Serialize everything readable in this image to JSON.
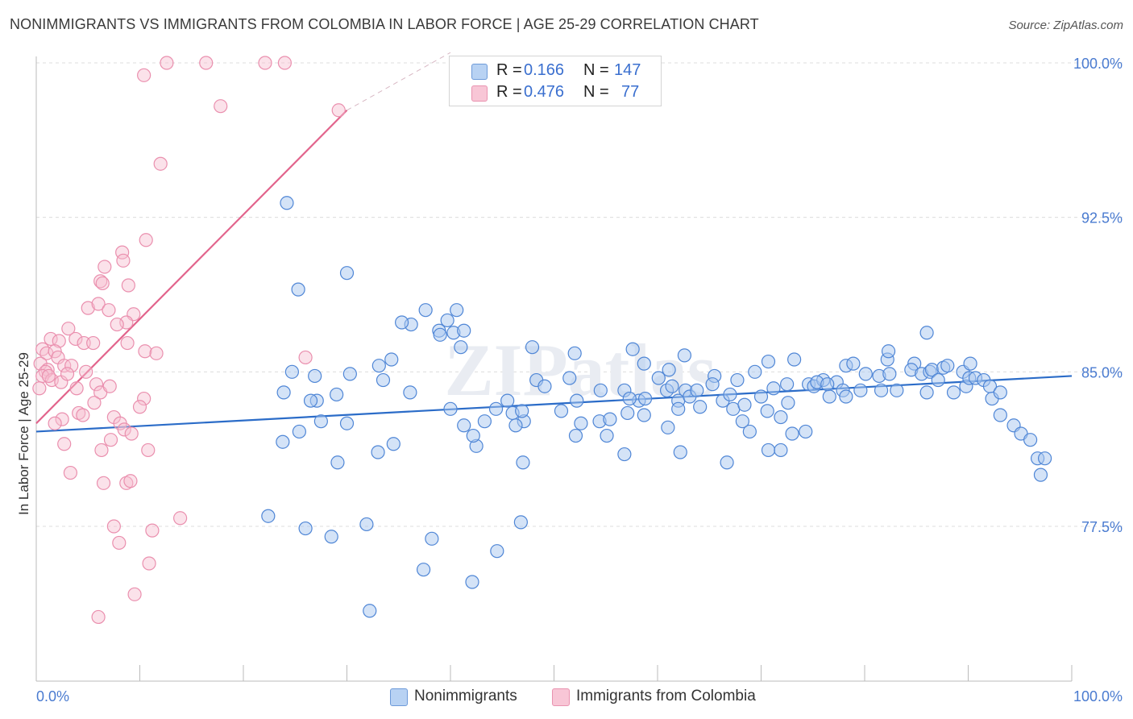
{
  "title": "NONIMMIGRANTS VS IMMIGRANTS FROM COLOMBIA IN LABOR FORCE | AGE 25-29 CORRELATION CHART",
  "source": "Source: ZipAtlas.com",
  "watermark": "ZIPatlas",
  "legend": {
    "rows": [
      {
        "r_label": "R =",
        "r_value": "0.166",
        "n_label": "N =",
        "n_value": "147"
      },
      {
        "r_label": "R =",
        "r_value": "0.476",
        "n_label": "N =",
        "n_value": "77"
      }
    ]
  },
  "colors": {
    "blue_fill": "#a9c8f0",
    "blue_stroke": "#4f86d6",
    "blue_line": "#2b6cc8",
    "pink_fill": "#f6bfd0",
    "pink_stroke": "#ea8fae",
    "pink_line": "#e2648c",
    "tick_text": "#4a7bd0",
    "grid": "#dcdcdc"
  },
  "chart_data": {
    "type": "scatter",
    "title": "NONIMMIGRANTS VS IMMIGRANTS FROM COLOMBIA IN LABOR FORCE | AGE 25-29 CORRELATION CHART",
    "xlabel": "",
    "ylabel": "In Labor Force | Age 25-29",
    "xlim": [
      0,
      100
    ],
    "ylim": [
      70.0,
      100.5
    ],
    "x_tick_labels": [
      "0.0%",
      "100.0%"
    ],
    "y_ticks": [
      77.5,
      85.0,
      92.5,
      100.0
    ],
    "y_tick_labels": [
      "77.5%",
      "85.0%",
      "92.5%",
      "100.0%"
    ],
    "grid": true,
    "legend_position": "top-center",
    "series": [
      {
        "name": "Nonimmigrants",
        "color": "blue",
        "R": 0.166,
        "N": 147,
        "trend": {
          "x0": 0,
          "y0": 82.1,
          "x1": 100,
          "y1": 84.8
        },
        "points": [
          [
            24.2,
            93.2
          ],
          [
            25.3,
            89.0
          ],
          [
            30.0,
            89.8
          ],
          [
            36.2,
            87.3
          ],
          [
            35.3,
            87.4
          ],
          [
            34.3,
            85.6
          ],
          [
            37.6,
            88.0
          ],
          [
            38.9,
            87.0
          ],
          [
            39.0,
            86.8
          ],
          [
            39.7,
            87.5
          ],
          [
            40.6,
            88.0
          ],
          [
            40.3,
            86.9
          ],
          [
            41.0,
            86.2
          ],
          [
            41.3,
            87.0
          ],
          [
            47.9,
            86.2
          ],
          [
            52.0,
            85.9
          ],
          [
            57.6,
            86.1
          ],
          [
            58.7,
            85.4
          ],
          [
            61.1,
            85.1
          ],
          [
            33.1,
            85.3
          ],
          [
            30.3,
            84.9
          ],
          [
            26.9,
            84.8
          ],
          [
            33.5,
            84.6
          ],
          [
            36.1,
            84.0
          ],
          [
            27.1,
            83.6
          ],
          [
            26.5,
            83.6
          ],
          [
            23.9,
            84.0
          ],
          [
            24.7,
            85.0
          ],
          [
            29.0,
            83.9
          ],
          [
            30.0,
            82.5
          ],
          [
            34.5,
            81.5
          ],
          [
            25.4,
            82.1
          ],
          [
            27.5,
            82.6
          ],
          [
            23.8,
            81.6
          ],
          [
            29.1,
            80.6
          ],
          [
            33.0,
            81.1
          ],
          [
            41.3,
            82.4
          ],
          [
            40.0,
            83.2
          ],
          [
            43.3,
            82.6
          ],
          [
            42.5,
            81.4
          ],
          [
            44.4,
            83.2
          ],
          [
            42.2,
            81.9
          ],
          [
            45.5,
            83.6
          ],
          [
            46.0,
            83.0
          ],
          [
            47.1,
            82.6
          ],
          [
            46.9,
            83.1
          ],
          [
            48.3,
            84.6
          ],
          [
            46.3,
            82.4
          ],
          [
            49.1,
            84.3
          ],
          [
            51.5,
            84.7
          ],
          [
            52.2,
            83.6
          ],
          [
            52.6,
            82.5
          ],
          [
            52.1,
            81.9
          ],
          [
            54.5,
            84.1
          ],
          [
            54.4,
            82.6
          ],
          [
            55.4,
            82.7
          ],
          [
            55.1,
            81.9
          ],
          [
            56.8,
            84.1
          ],
          [
            57.1,
            83.0
          ],
          [
            58.2,
            83.6
          ],
          [
            58.7,
            82.9
          ],
          [
            60.1,
            84.7
          ],
          [
            60.9,
            84.1
          ],
          [
            61.4,
            84.3
          ],
          [
            62.0,
            83.6
          ],
          [
            62.7,
            84.1
          ],
          [
            63.1,
            83.8
          ],
          [
            63.8,
            84.1
          ],
          [
            64.1,
            83.3
          ],
          [
            65.5,
            84.8
          ],
          [
            65.3,
            84.4
          ],
          [
            66.3,
            83.6
          ],
          [
            67.0,
            83.9
          ],
          [
            67.3,
            83.2
          ],
          [
            67.7,
            84.6
          ],
          [
            68.2,
            82.6
          ],
          [
            68.4,
            83.4
          ],
          [
            68.9,
            82.1
          ],
          [
            69.4,
            85.0
          ],
          [
            70.0,
            83.8
          ],
          [
            70.6,
            83.1
          ],
          [
            71.2,
            84.2
          ],
          [
            72.5,
            84.4
          ],
          [
            72.6,
            83.5
          ],
          [
            74.6,
            84.4
          ],
          [
            75.1,
            84.3
          ],
          [
            76.0,
            84.6
          ],
          [
            76.6,
            83.8
          ],
          [
            77.3,
            84.5
          ],
          [
            77.9,
            84.1
          ],
          [
            78.2,
            85.3
          ],
          [
            78.2,
            83.8
          ],
          [
            78.9,
            85.4
          ],
          [
            79.6,
            84.1
          ],
          [
            80.1,
            84.9
          ],
          [
            81.4,
            84.8
          ],
          [
            81.6,
            84.1
          ],
          [
            82.2,
            85.6
          ],
          [
            82.4,
            84.9
          ],
          [
            83.1,
            84.1
          ],
          [
            84.8,
            85.4
          ],
          [
            84.5,
            85.1
          ],
          [
            85.5,
            84.9
          ],
          [
            86.0,
            84.0
          ],
          [
            86.3,
            85.0
          ],
          [
            86.5,
            85.1
          ],
          [
            87.1,
            84.6
          ],
          [
            87.6,
            85.2
          ],
          [
            88.0,
            85.3
          ],
          [
            88.6,
            84.0
          ],
          [
            89.5,
            85.0
          ],
          [
            89.8,
            84.3
          ],
          [
            90.1,
            84.7
          ],
          [
            90.7,
            84.7
          ],
          [
            91.5,
            84.6
          ],
          [
            92.1,
            84.3
          ],
          [
            92.3,
            83.7
          ],
          [
            93.1,
            84.0
          ],
          [
            93.1,
            82.9
          ],
          [
            94.4,
            82.4
          ],
          [
            95.1,
            82.0
          ],
          [
            96.0,
            81.7
          ],
          [
            96.7,
            80.8
          ],
          [
            97.0,
            80.0
          ],
          [
            97.4,
            80.8
          ],
          [
            82.3,
            86.0
          ],
          [
            86.0,
            86.9
          ],
          [
            62.6,
            85.8
          ],
          [
            70.7,
            85.5
          ],
          [
            73.2,
            85.6
          ],
          [
            75.4,
            84.5
          ],
          [
            76.4,
            84.4
          ],
          [
            90.2,
            85.4
          ],
          [
            22.4,
            78.0
          ],
          [
            26.0,
            77.4
          ],
          [
            28.5,
            77.0
          ],
          [
            31.9,
            77.6
          ],
          [
            37.4,
            75.4
          ],
          [
            38.2,
            76.9
          ],
          [
            44.5,
            76.3
          ],
          [
            46.8,
            77.7
          ],
          [
            47.0,
            80.6
          ],
          [
            42.1,
            74.8
          ],
          [
            32.2,
            73.4
          ],
          [
            56.8,
            81.0
          ],
          [
            70.7,
            81.2
          ],
          [
            62.2,
            81.1
          ],
          [
            71.9,
            82.8
          ],
          [
            71.9,
            81.2
          ],
          [
            66.7,
            80.6
          ],
          [
            73.0,
            82.0
          ],
          [
            74.3,
            82.1
          ],
          [
            61.0,
            82.3
          ],
          [
            50.7,
            83.1
          ],
          [
            58.8,
            83.7
          ],
          [
            57.3,
            83.7
          ],
          [
            62.0,
            83.2
          ]
        ]
      },
      {
        "name": "Immigrants from Colombia",
        "color": "pink",
        "R": 0.476,
        "N": 77,
        "trend": {
          "x0": 0,
          "y0": 82.5,
          "x1": 30,
          "y1": 97.7
        },
        "trend_dashed_extension": {
          "x0": 30,
          "y0": 97.7,
          "x1": 40,
          "y1": 100.5
        },
        "points": [
          [
            12.6,
            100.0
          ],
          [
            16.4,
            100.0
          ],
          [
            22.1,
            100.0
          ],
          [
            24.0,
            100.0
          ],
          [
            10.4,
            99.4
          ],
          [
            17.8,
            97.9
          ],
          [
            29.2,
            97.7
          ],
          [
            12.0,
            95.1
          ],
          [
            10.6,
            91.4
          ],
          [
            8.3,
            90.8
          ],
          [
            8.4,
            90.4
          ],
          [
            6.6,
            90.1
          ],
          [
            6.2,
            89.4
          ],
          [
            6.4,
            89.3
          ],
          [
            8.9,
            89.2
          ],
          [
            5.0,
            88.1
          ],
          [
            6.0,
            88.3
          ],
          [
            7.0,
            88.0
          ],
          [
            9.4,
            87.8
          ],
          [
            8.7,
            87.4
          ],
          [
            7.8,
            87.3
          ],
          [
            3.1,
            87.1
          ],
          [
            1.4,
            86.6
          ],
          [
            2.2,
            86.5
          ],
          [
            3.8,
            86.6
          ],
          [
            4.6,
            86.4
          ],
          [
            5.5,
            86.4
          ],
          [
            0.6,
            86.1
          ],
          [
            1.0,
            85.9
          ],
          [
            1.8,
            86.0
          ],
          [
            2.1,
            85.7
          ],
          [
            0.4,
            85.4
          ],
          [
            2.7,
            85.3
          ],
          [
            3.4,
            85.3
          ],
          [
            1.1,
            85.1
          ],
          [
            0.9,
            85.0
          ],
          [
            0.6,
            84.8
          ],
          [
            1.5,
            84.6
          ],
          [
            2.4,
            84.5
          ],
          [
            3.0,
            84.9
          ],
          [
            4.8,
            85.0
          ],
          [
            3.9,
            84.2
          ],
          [
            5.8,
            84.4
          ],
          [
            6.2,
            84.0
          ],
          [
            7.1,
            84.3
          ],
          [
            5.6,
            83.5
          ],
          [
            4.1,
            83.0
          ],
          [
            4.5,
            82.9
          ],
          [
            2.5,
            82.7
          ],
          [
            1.8,
            82.5
          ],
          [
            7.5,
            82.8
          ],
          [
            8.1,
            82.5
          ],
          [
            8.5,
            82.2
          ],
          [
            9.2,
            82.0
          ],
          [
            7.2,
            81.7
          ],
          [
            2.7,
            81.5
          ],
          [
            6.3,
            81.2
          ],
          [
            10.8,
            81.2
          ],
          [
            10.4,
            83.7
          ],
          [
            10.0,
            83.3
          ],
          [
            10.5,
            86.0
          ],
          [
            8.8,
            86.4
          ],
          [
            11.6,
            85.9
          ],
          [
            26.0,
            85.7
          ],
          [
            3.3,
            80.1
          ],
          [
            6.5,
            79.6
          ],
          [
            8.7,
            79.6
          ],
          [
            9.1,
            79.7
          ],
          [
            7.5,
            77.5
          ],
          [
            11.2,
            77.3
          ],
          [
            13.9,
            77.9
          ],
          [
            8.0,
            76.7
          ],
          [
            10.9,
            75.7
          ],
          [
            9.5,
            74.2
          ],
          [
            6.0,
            73.1
          ],
          [
            0.3,
            84.2
          ],
          [
            1.2,
            84.8
          ]
        ]
      }
    ]
  },
  "bottom_legend": [
    "Nonimmigrants",
    "Immigrants from Colombia"
  ]
}
